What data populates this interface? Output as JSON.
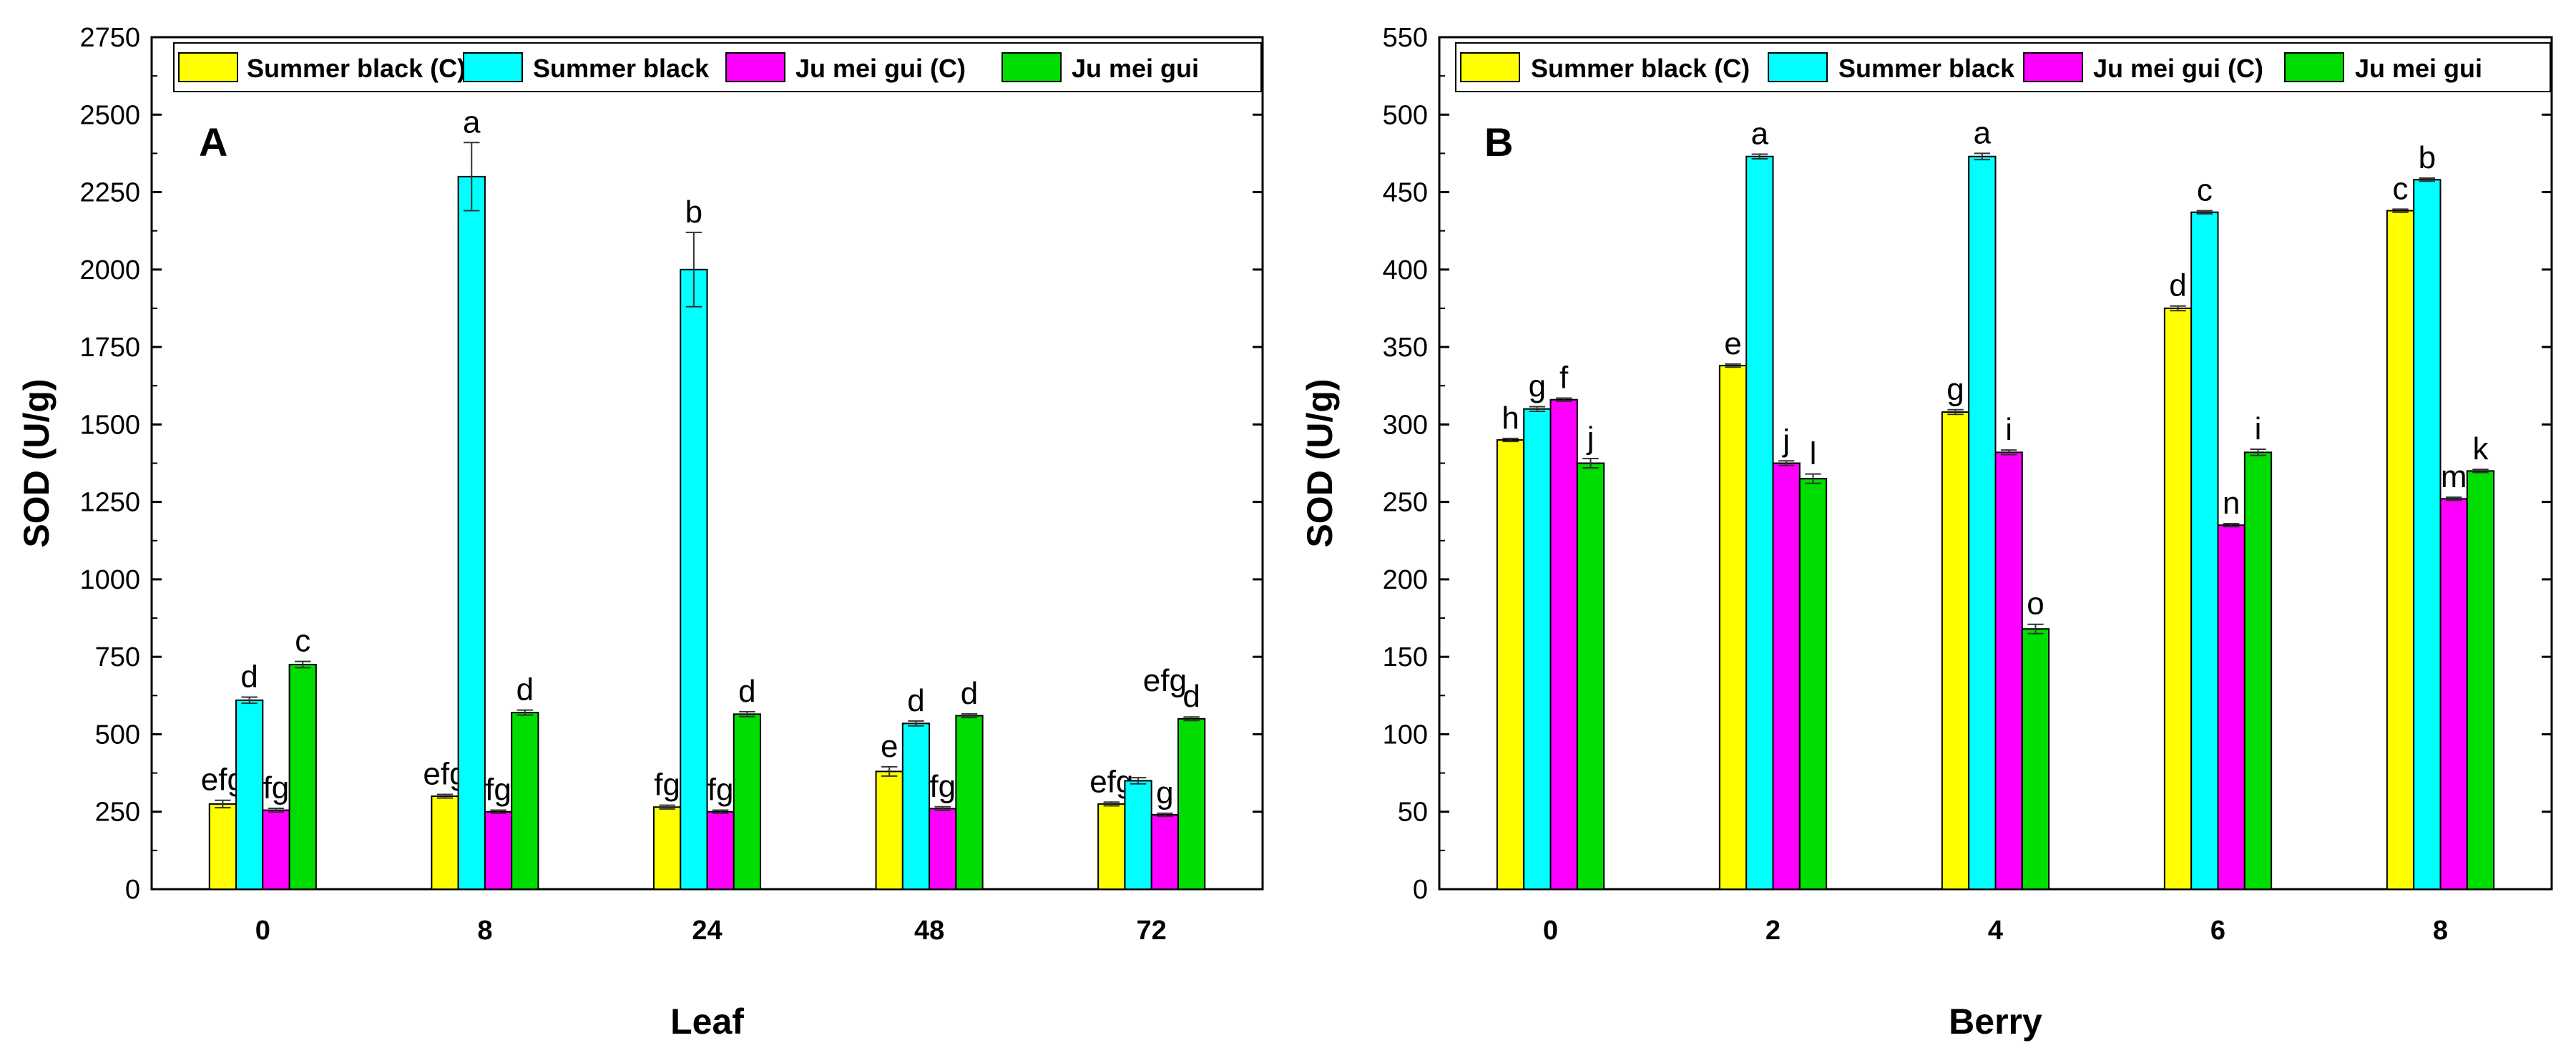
{
  "chart_data": [
    {
      "type": "bar",
      "panel": "A",
      "xlabel": "Leaf",
      "ylabel": "SOD (U/g)",
      "categories": [
        "0",
        "8",
        "24",
        "48",
        "72"
      ],
      "ylim": [
        0,
        2750
      ],
      "yticks": [
        0,
        250,
        500,
        750,
        1000,
        1250,
        1500,
        1750,
        2000,
        2250,
        2500,
        2750
      ],
      "legend_position": "top",
      "series": [
        {
          "name": "Summer black (C)",
          "color": "#ffff00",
          "values": [
            275,
            300,
            265,
            380,
            275
          ],
          "errors": [
            12,
            6,
            6,
            15,
            6
          ],
          "labels": [
            "efg",
            "efg",
            "fg",
            "e",
            "efg"
          ]
        },
        {
          "name": "Summer black",
          "color": "#00ffff",
          "values": [
            610,
            2300,
            2000,
            535,
            350
          ],
          "errors": [
            10,
            110,
            120,
            8,
            10
          ],
          "labels": [
            "d",
            "a",
            "b",
            "d",
            ""
          ]
        },
        {
          "name": "Ju mei gui (C)",
          "color": "#ff00ff",
          "values": [
            255,
            250,
            250,
            260,
            240
          ],
          "errors": [
            6,
            5,
            5,
            6,
            5
          ],
          "labels": [
            "fg",
            "fg",
            "fg",
            "fg",
            "g"
          ]
        },
        {
          "name": "Ju mei gui",
          "color": "#00dd00",
          "values": [
            725,
            570,
            565,
            560,
            550
          ],
          "errors": [
            10,
            8,
            8,
            6,
            6
          ],
          "labels": [
            "c",
            "d",
            "d",
            "d",
            "d"
          ]
        }
      ],
      "extra_labels": [
        {
          "text": "efg",
          "category": "72",
          "value": 640
        }
      ]
    },
    {
      "type": "bar",
      "panel": "B",
      "xlabel": "Berry",
      "ylabel": "SOD (U/g)",
      "categories": [
        "0",
        "2",
        "4",
        "6",
        "8"
      ],
      "ylim": [
        0,
        550
      ],
      "yticks": [
        0,
        50,
        100,
        150,
        200,
        250,
        300,
        350,
        400,
        450,
        500,
        550
      ],
      "legend_position": "top",
      "series": [
        {
          "name": "Summer black (C)",
          "color": "#ffff00",
          "values": [
            290,
            338,
            308,
            375,
            438
          ],
          "errors": [
            1,
            1,
            1.5,
            1.5,
            1
          ],
          "labels": [
            "h",
            "e",
            "g",
            "d",
            "c"
          ]
        },
        {
          "name": "Summer black",
          "color": "#00ffff",
          "values": [
            310,
            473,
            473,
            437,
            458
          ],
          "errors": [
            1.5,
            1.5,
            2,
            1,
            1
          ],
          "labels": [
            "g",
            "a",
            "a",
            "c",
            "b"
          ]
        },
        {
          "name": "Ju mei gui (C)",
          "color": "#ff00ff",
          "values": [
            316,
            275,
            282,
            235,
            252
          ],
          "errors": [
            1,
            1.5,
            1.5,
            1,
            1
          ],
          "labels": [
            "f",
            "j",
            "i",
            "n",
            "m"
          ]
        },
        {
          "name": "Ju mei gui",
          "color": "#00dd00",
          "values": [
            275,
            265,
            168,
            282,
            270
          ],
          "errors": [
            3,
            3,
            3,
            2,
            1
          ],
          "labels": [
            "j",
            "l",
            "o",
            "i",
            "k"
          ]
        }
      ],
      "extra_labels": []
    }
  ]
}
